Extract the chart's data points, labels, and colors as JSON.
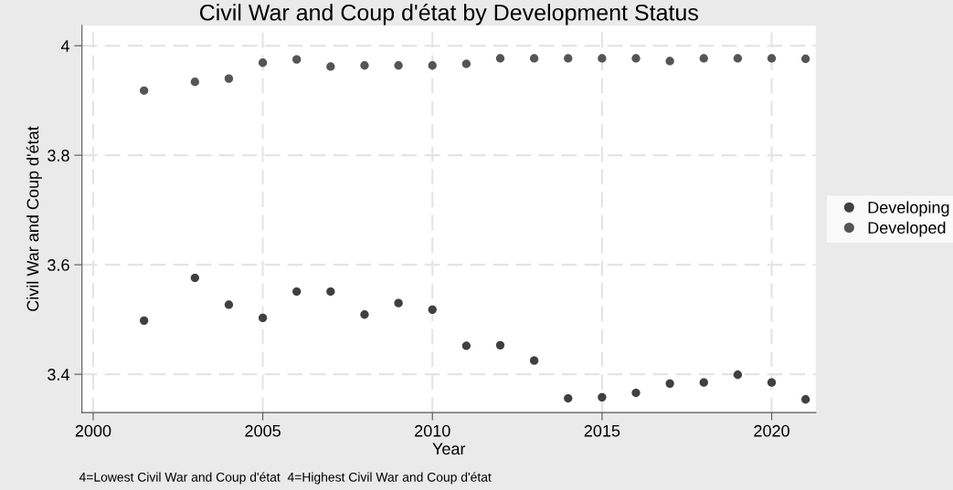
{
  "chart_data": {
    "type": "scatter",
    "title": "Civil War and Coup d'état by Development Status",
    "xlabel": "Year",
    "ylabel": "Civil War and Coup d'état",
    "x": [
      2001.5,
      2003,
      2004,
      2005,
      2006,
      2007,
      2008,
      2009,
      2010,
      2011,
      2012,
      2013,
      2014,
      2015,
      2016,
      2017,
      2018,
      2019,
      2020,
      2021
    ],
    "series": [
      {
        "name": "Developing",
        "color": "#404040",
        "values": [
          3.498,
          3.576,
          3.527,
          3.503,
          3.551,
          3.551,
          3.509,
          3.53,
          3.518,
          3.452,
          3.453,
          3.425,
          3.356,
          3.358,
          3.366,
          3.383,
          3.385,
          3.399,
          3.385,
          3.354
        ]
      },
      {
        "name": "Developed",
        "color": "#555555",
        "values": [
          3.918,
          3.934,
          3.94,
          3.969,
          3.975,
          3.962,
          3.964,
          3.964,
          3.964,
          3.967,
          3.977,
          3.977,
          3.977,
          3.977,
          3.977,
          3.972,
          3.977,
          3.977,
          3.977,
          3.976
        ]
      }
    ],
    "xlim": [
      1999.67,
      2021.3
    ],
    "ylim": [
      3.33,
      4.037
    ],
    "xticks": [
      2000,
      2005,
      2010,
      2015,
      2020
    ],
    "yticks": [
      {
        "value": 3.4,
        "label": "3.4"
      },
      {
        "value": 3.6,
        "label": "3.6"
      },
      {
        "value": 3.8,
        "label": "3.8"
      },
      {
        "value": 4,
        "label": "4"
      }
    ],
    "grid": true,
    "legend": "right",
    "marker": "circle",
    "annotations": [
      "4=Lowest Civil War and Coup d'état  4=Highest Civil War and Coup d'état"
    ]
  }
}
